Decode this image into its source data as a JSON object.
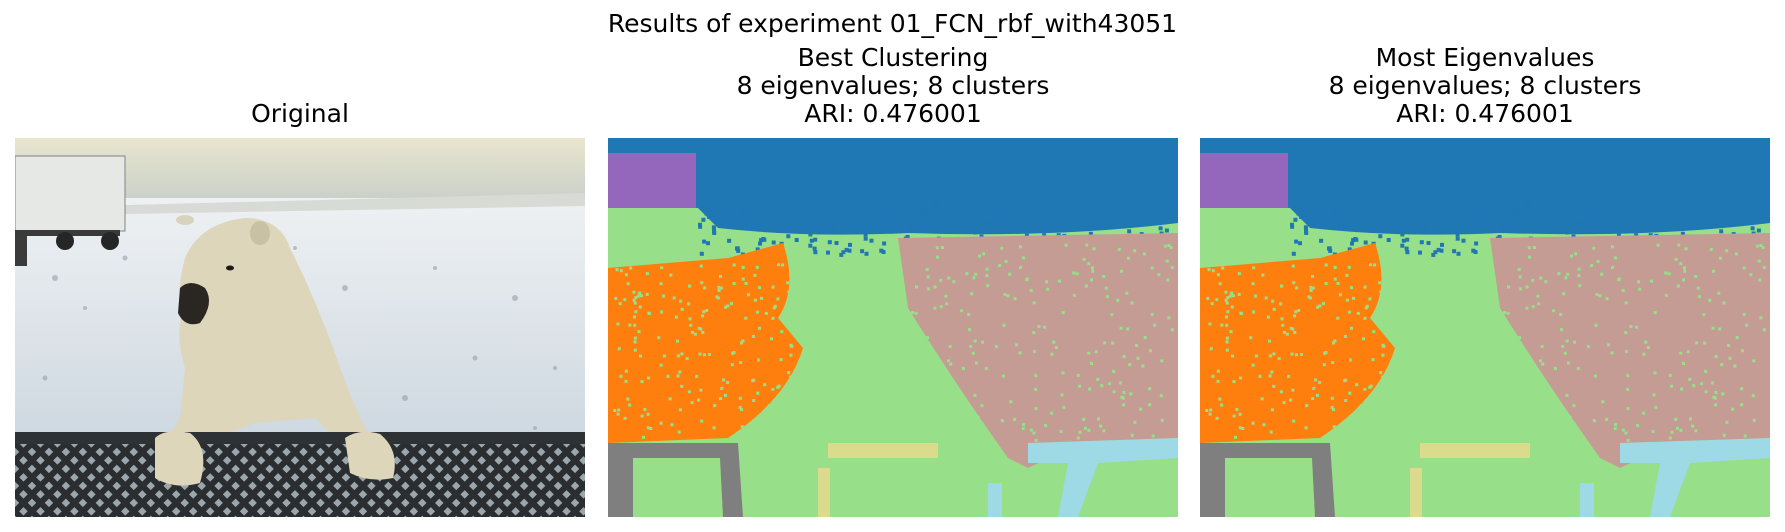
{
  "figure": {
    "suptitle": "Results of experiment 01_FCN_rbf_with43051"
  },
  "panels": [
    {
      "id": "original",
      "title_lines": [
        "Original"
      ],
      "content": "photo of a polar bear leaning on a metal mesh railing, snowy tundra, white truck in background"
    },
    {
      "id": "best",
      "title_lines": [
        "Best Clustering",
        "8 eigenvalues; 8 clusters",
        "ARI: 0.476001"
      ],
      "content": "segmentation map"
    },
    {
      "id": "most",
      "title_lines": [
        "Most Eigenvalues",
        "8 eigenvalues; 8 clusters",
        "ARI: 0.476001"
      ],
      "content": "segmentation map"
    }
  ],
  "palette": {
    "sky": "#1f77b4",
    "ground": "#98df8a",
    "snow_far": "#c49c94",
    "bear_region": "#ff7f0e",
    "truck": "#9467bd",
    "rail": "#7f7f7f",
    "light_blue": "#9edae5",
    "yellow": "#dbdb8d"
  }
}
